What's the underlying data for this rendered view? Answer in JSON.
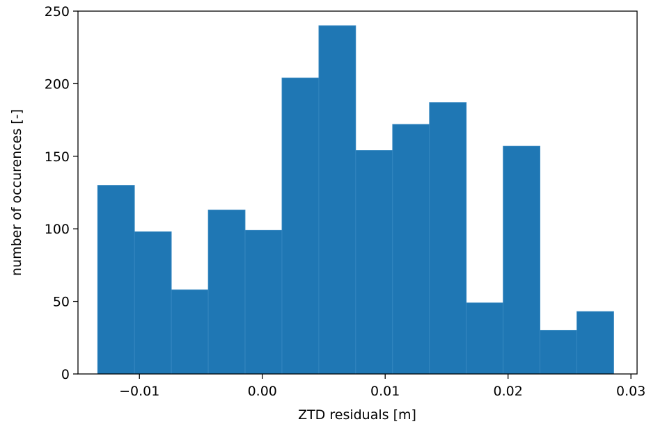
{
  "chart_data": {
    "type": "bar",
    "subtype": "histogram",
    "title": "",
    "xlabel": "ZTD residuals [m]",
    "ylabel": "number of occurences [-]",
    "xlim": [
      -0.015,
      0.0305
    ],
    "ylim": [
      0,
      250
    ],
    "grid": false,
    "bar_color": "#1f77b4",
    "bin_edges": [
      -0.0134,
      -0.0104,
      -0.0074,
      -0.0044,
      -0.0014,
      0.0016,
      0.0046,
      0.0076,
      0.0106,
      0.0136,
      0.0166,
      0.0196,
      0.0226,
      0.0256,
      0.0286
    ],
    "values": [
      130,
      98,
      58,
      113,
      99,
      204,
      240,
      154,
      172,
      187,
      49,
      157,
      30,
      43
    ],
    "x_ticks": [
      {
        "value": -0.01,
        "label": "−0.01"
      },
      {
        "value": 0.0,
        "label": "0.00"
      },
      {
        "value": 0.01,
        "label": "0.01"
      },
      {
        "value": 0.02,
        "label": "0.02"
      },
      {
        "value": 0.03,
        "label": "0.03"
      }
    ],
    "y_ticks": [
      {
        "value": 0,
        "label": "0"
      },
      {
        "value": 50,
        "label": "50"
      },
      {
        "value": 100,
        "label": "100"
      },
      {
        "value": 150,
        "label": "150"
      },
      {
        "value": 200,
        "label": "200"
      },
      {
        "value": 250,
        "label": "250"
      }
    ]
  }
}
